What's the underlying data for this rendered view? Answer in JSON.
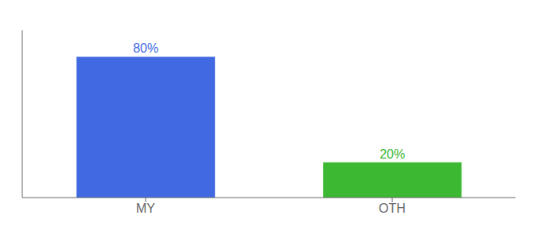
{
  "chart_data": {
    "type": "bar",
    "categories": [
      "MY",
      "OTH"
    ],
    "values": [
      80,
      20
    ],
    "value_labels": [
      "80%",
      "20%"
    ],
    "colors": [
      "#4169E1",
      "#3CB832"
    ],
    "ylim": [
      0,
      95
    ],
    "data_labels": true,
    "tick_labels": "x",
    "grid": false
  }
}
